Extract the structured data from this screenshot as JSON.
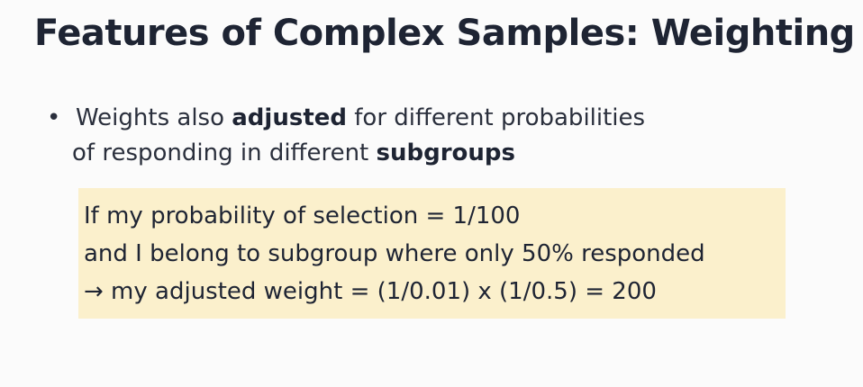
{
  "slide": {
    "title": "Features of Complex Samples: Weighting",
    "bullet": {
      "marker": "•",
      "line1_pre": "Weights also ",
      "line1_bold": "adjusted",
      "line1_post": " for different probabilities",
      "line2_pre": "of responding in different ",
      "line2_bold": "subgroups"
    },
    "callout": {
      "line1": "If my probability of selection = 1/100",
      "line2": "and I belong to subgroup where only 50% responded",
      "line3": "→ my adjusted weight = (1/0.01) x (1/0.5) = 200",
      "background": "#fbf0cc"
    }
  }
}
